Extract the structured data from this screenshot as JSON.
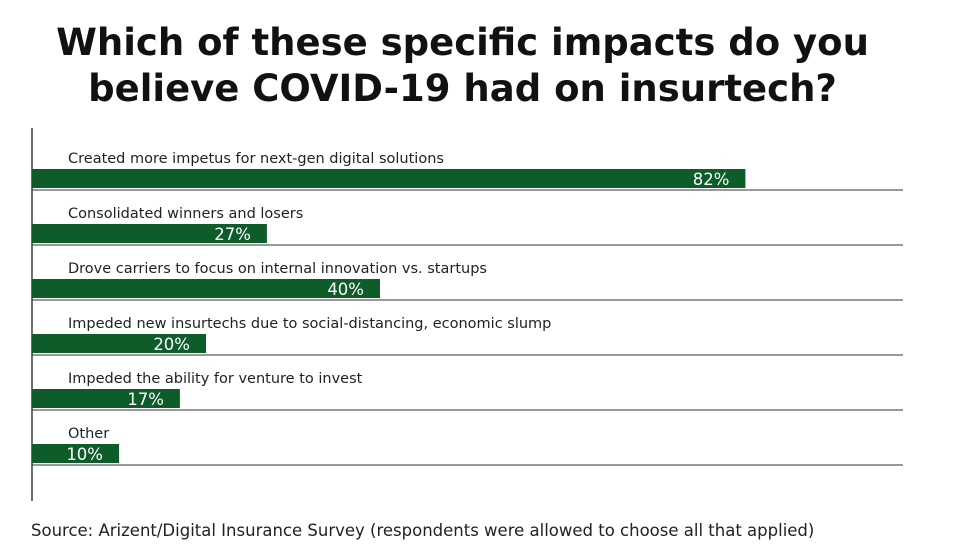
{
  "chart_data": {
    "type": "bar",
    "orientation": "horizontal",
    "title": "Which of these specific impacts do you believe COVID-19 had on insurtech?",
    "categories": [
      "Created more impetus for next-gen digital solutions",
      "Consolidated winners and losers",
      "Drove carriers to focus on internal innovation vs. startups",
      "Impeded new insurtechs due to social-distancing, economic slump",
      "Impeded the ability for venture to invest",
      "Other"
    ],
    "values": [
      82,
      27,
      40,
      20,
      17,
      10
    ],
    "value_labels": [
      "82%",
      "27%",
      "40%",
      "20%",
      "17%",
      "10%"
    ],
    "xlim": [
      0,
      100
    ],
    "bar_color": "#0d5c2a",
    "label_color": "#ffffff",
    "grid": false,
    "legend": "none"
  },
  "source": "Source: Arizent/Digital Insurance Survey (respondents were allowed to choose all that applied)"
}
